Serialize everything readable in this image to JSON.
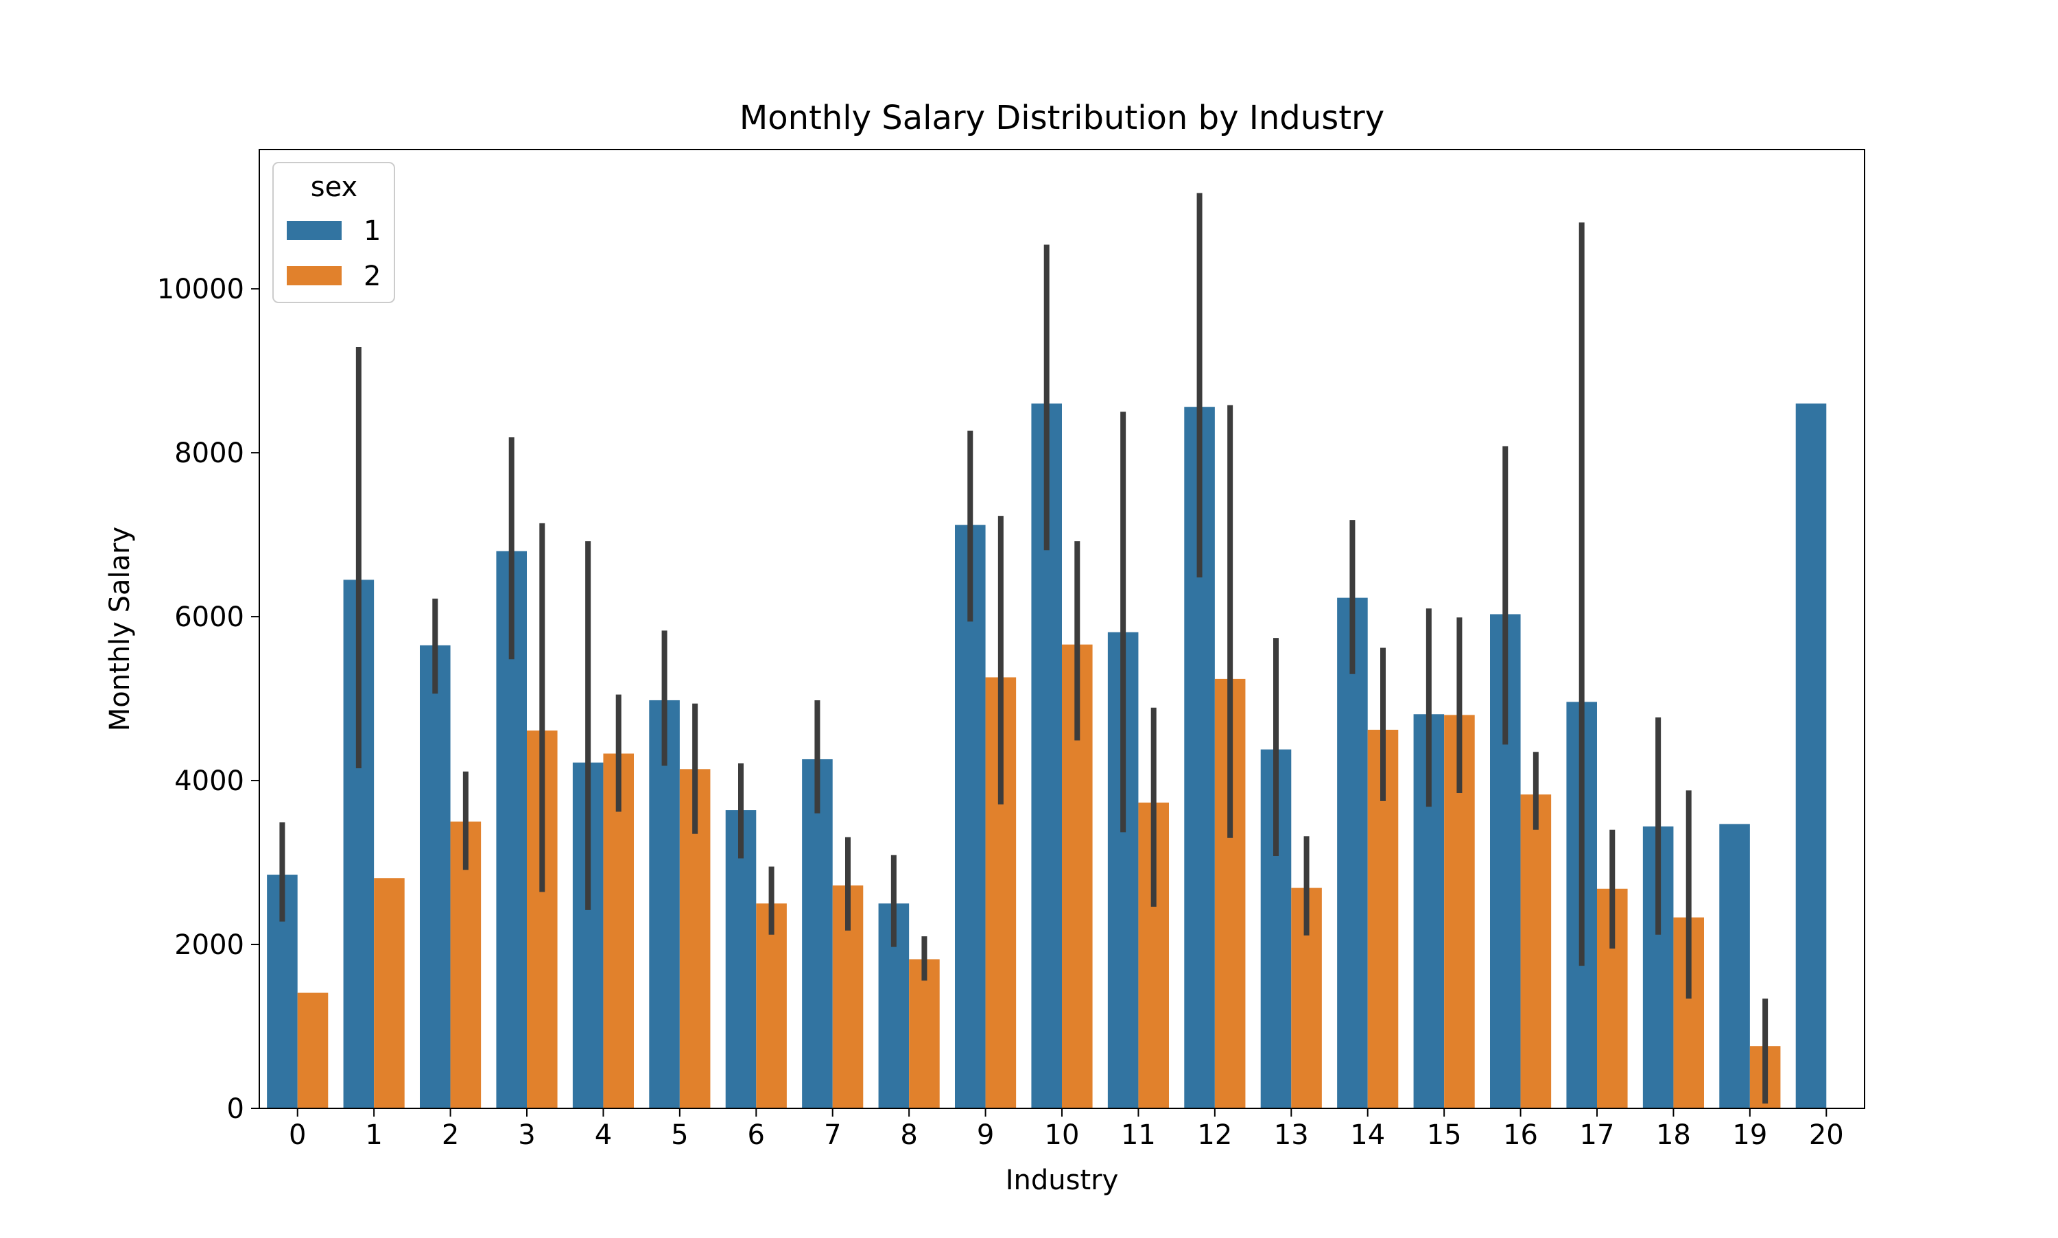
{
  "chart_data": {
    "type": "bar",
    "title": "Monthly Salary Distribution by Industry",
    "xlabel": "Industry",
    "ylabel": "Monthly Salary",
    "categories": [
      "0",
      "1",
      "2",
      "3",
      "4",
      "5",
      "6",
      "7",
      "8",
      "9",
      "10",
      "11",
      "12",
      "13",
      "14",
      "15",
      "16",
      "17",
      "18",
      "19",
      "20"
    ],
    "ylim": [
      0,
      11700
    ],
    "yticks": [
      0,
      2000,
      4000,
      6000,
      8000,
      10000
    ],
    "grid": false,
    "legend": {
      "title": "sex",
      "placement": "top-left"
    },
    "series": [
      {
        "name": "1",
        "color": "#3274a1",
        "values": [
          2850,
          6450,
          5650,
          6800,
          4220,
          4980,
          3640,
          4260,
          2500,
          7120,
          8600,
          5810,
          8560,
          4380,
          6230,
          4810,
          6030,
          4960,
          3440,
          3470,
          8600
        ],
        "ci_low": [
          2280,
          4150,
          5060,
          5480,
          2420,
          4180,
          3050,
          3600,
          1970,
          5940,
          6810,
          3370,
          6480,
          3080,
          5300,
          3680,
          4440,
          1740,
          2120,
          null,
          null
        ],
        "ci_high": [
          3490,
          9290,
          6220,
          8190,
          6920,
          5830,
          4210,
          4980,
          3090,
          8270,
          10540,
          8500,
          11170,
          5740,
          7180,
          6100,
          8080,
          10810,
          4770,
          null,
          null
        ]
      },
      {
        "name": "2",
        "color": "#e1812c",
        "values": [
          1410,
          2810,
          3500,
          4610,
          4330,
          4140,
          2500,
          2720,
          1820,
          5260,
          5660,
          3730,
          5240,
          2690,
          4620,
          4800,
          3830,
          2680,
          2330,
          760,
          null
        ],
        "ci_low": [
          null,
          null,
          2910,
          2640,
          3620,
          3350,
          2120,
          2170,
          1560,
          3710,
          4490,
          2460,
          3300,
          2110,
          3750,
          3850,
          3400,
          1950,
          1340,
          60,
          null
        ],
        "ci_high": [
          null,
          null,
          4110,
          7140,
          5050,
          4940,
          2950,
          3310,
          2100,
          7230,
          6920,
          4890,
          8580,
          3320,
          5620,
          5990,
          4350,
          3400,
          3880,
          1340,
          null
        ]
      }
    ]
  }
}
